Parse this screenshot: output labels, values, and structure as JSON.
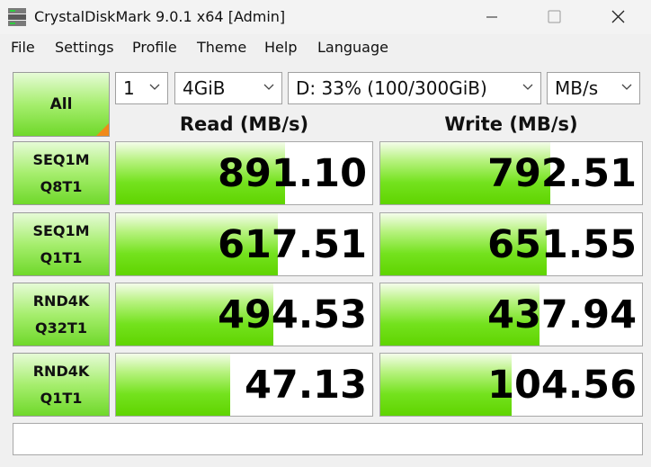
{
  "window": {
    "title": "CrystalDiskMark 9.0.1 x64 [Admin]"
  },
  "menu": [
    "File",
    "Settings",
    "Profile",
    "Theme",
    "Help",
    "Language"
  ],
  "controls": {
    "all_button": "All",
    "count": "1",
    "size": "4GiB",
    "drive": "D: 33% (100/300GiB)",
    "unit": "MB/s"
  },
  "headers": {
    "read": "Read (MB/s)",
    "write": "Write (MB/s)"
  },
  "rows": [
    {
      "test": [
        "SEQ1M",
        "Q8T1"
      ],
      "read": "891.10",
      "write": "792.51"
    },
    {
      "test": [
        "SEQ1M",
        "Q1T1"
      ],
      "read": "617.51",
      "write": "651.55"
    },
    {
      "test": [
        "RND4K",
        "Q32T1"
      ],
      "read": "494.53",
      "write": "437.94"
    },
    {
      "test": [
        "RND4K",
        "Q1T1"
      ],
      "read": "47.13",
      "write": "104.56"
    }
  ]
}
